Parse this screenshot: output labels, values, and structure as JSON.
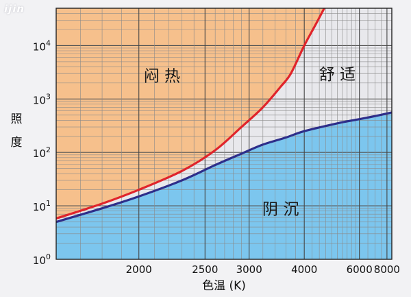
{
  "logo_text": "ijin",
  "chart_data": {
    "type": "area",
    "title": "",
    "xlabel": "色温 (K)",
    "ylabel": "照度",
    "x_scale": "reciprocal",
    "y_scale": "log",
    "xlim": [
      1600,
      8500
    ],
    "ylim": [
      1,
      50000
    ],
    "x_ticks": [
      2000,
      2500,
      3000,
      4000,
      6000,
      8000
    ],
    "x_tick_labels": [
      "2000",
      "2500",
      "3000",
      "4000",
      "6000",
      "8000"
    ],
    "x_minor_ticks": [
      1700,
      1800,
      1900,
      2100,
      2200,
      2300,
      2400,
      2600,
      2700,
      2800,
      2900,
      3200,
      3400,
      3600,
      3800,
      4200,
      4400,
      4600,
      4800,
      5000,
      5200,
      5400,
      5600,
      5800,
      6500,
      7000,
      7500
    ],
    "y_ticks": [
      1,
      10,
      100,
      1000,
      10000
    ],
    "y_tick_labels": [
      {
        "base": "10",
        "exp": "0"
      },
      {
        "base": "10",
        "exp": "1"
      },
      {
        "base": "10",
        "exp": "2"
      },
      {
        "base": "10",
        "exp": "3"
      },
      {
        "base": "10",
        "exp": "4"
      }
    ],
    "grid": true,
    "series": [
      {
        "name": "",
        "color": "#e0242b",
        "x": [
          1600,
          1800,
          2000,
          2300,
          2600,
          2900,
          3200,
          3500,
          3700,
          4000,
          4300,
          4550
        ],
        "y": [
          5.8,
          11,
          20,
          45,
          110,
          300,
          700,
          1700,
          3000,
          10000,
          25000,
          50000
        ]
      },
      {
        "name": "",
        "color": "#2e2e8a",
        "x": [
          1600,
          1800,
          2000,
          2300,
          2600,
          2900,
          3200,
          3600,
          4000,
          5000,
          6000,
          7000,
          8500
        ],
        "y": [
          5,
          9,
          15,
          30,
          58,
          95,
          140,
          190,
          250,
          350,
          420,
          480,
          560
        ]
      }
    ],
    "regions": [
      {
        "label": "闷 热",
        "fill": "#f6c08c",
        "x": 2150,
        "y": 2800
      },
      {
        "label": "舒 适",
        "fill": "#e8e8ec",
        "x": 5000,
        "y": 3000
      },
      {
        "label": "阴 沉",
        "fill": "#7cc6ee",
        "x": 3500,
        "y": 9
      }
    ]
  }
}
